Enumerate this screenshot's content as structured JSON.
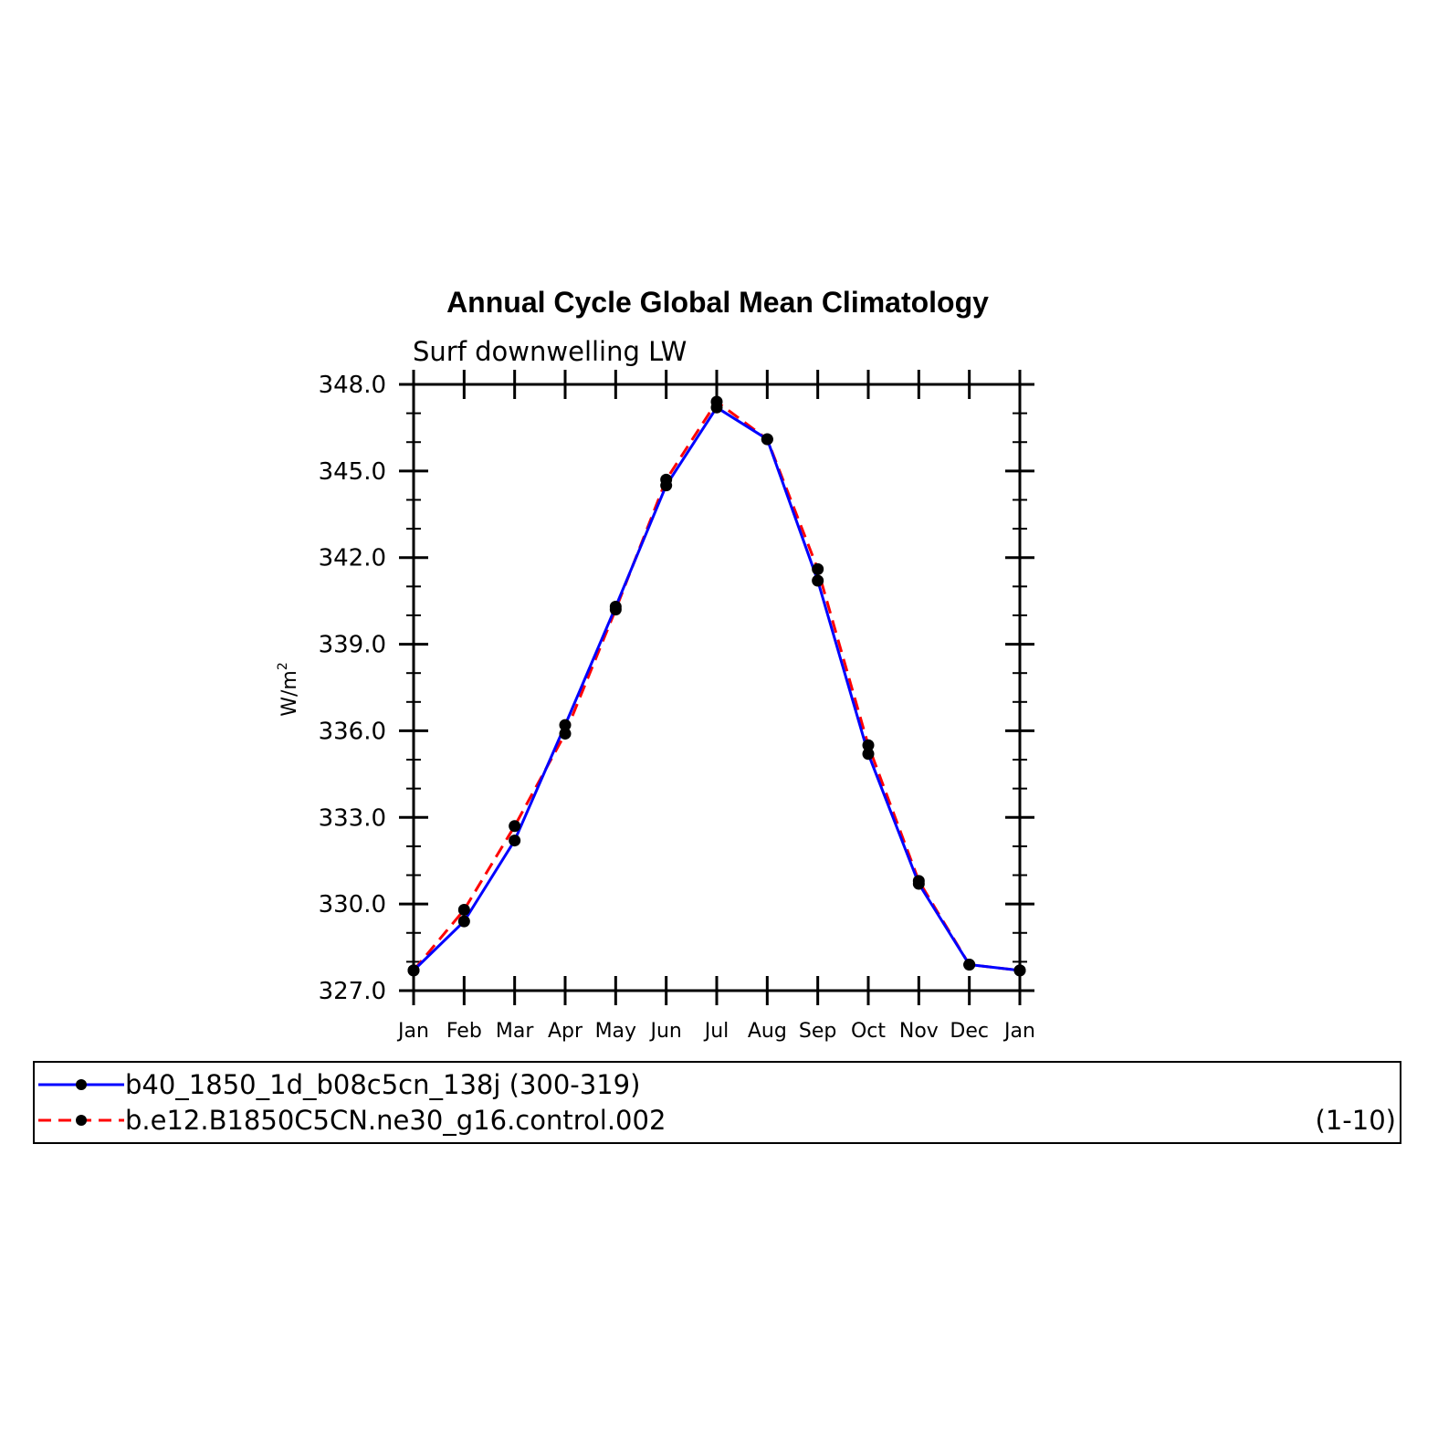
{
  "chart_data": {
    "type": "line",
    "title": "Annual Cycle Global Mean Climatology",
    "subtitle": "Surf downwelling LW",
    "ylabel": "W/m",
    "ylabel_superscript": "2",
    "xlabel": "",
    "categories": [
      "Jan",
      "Feb",
      "Mar",
      "Apr",
      "May",
      "Jun",
      "Jul",
      "Aug",
      "Sep",
      "Oct",
      "Nov",
      "Dec",
      "Jan"
    ],
    "ylim": [
      327.0,
      348.0
    ],
    "yticks": [
      "327.0",
      "330.0",
      "333.0",
      "336.0",
      "339.0",
      "342.0",
      "345.0",
      "348.0"
    ],
    "ytick_values": [
      327,
      330,
      333,
      336,
      339,
      342,
      345,
      348
    ],
    "grid": false,
    "legend_position": "bottom",
    "series": [
      {
        "name": "b40_1850_1d_b08c5cn_138j (300-319)",
        "color": "#0000ff",
        "dash": "solid",
        "values": [
          327.7,
          329.4,
          332.2,
          336.2,
          340.3,
          344.5,
          347.2,
          346.1,
          341.2,
          335.2,
          330.7,
          327.9,
          327.7
        ]
      },
      {
        "name": "b.e12.B1850C5CN.ne30_g16.control.002",
        "name_suffix": "(1-10)",
        "color": "#ff0000",
        "dash": "dashed",
        "values": [
          327.7,
          329.8,
          332.7,
          335.9,
          340.2,
          344.7,
          347.4,
          346.1,
          341.6,
          335.5,
          330.8,
          327.9,
          327.7
        ]
      }
    ]
  }
}
